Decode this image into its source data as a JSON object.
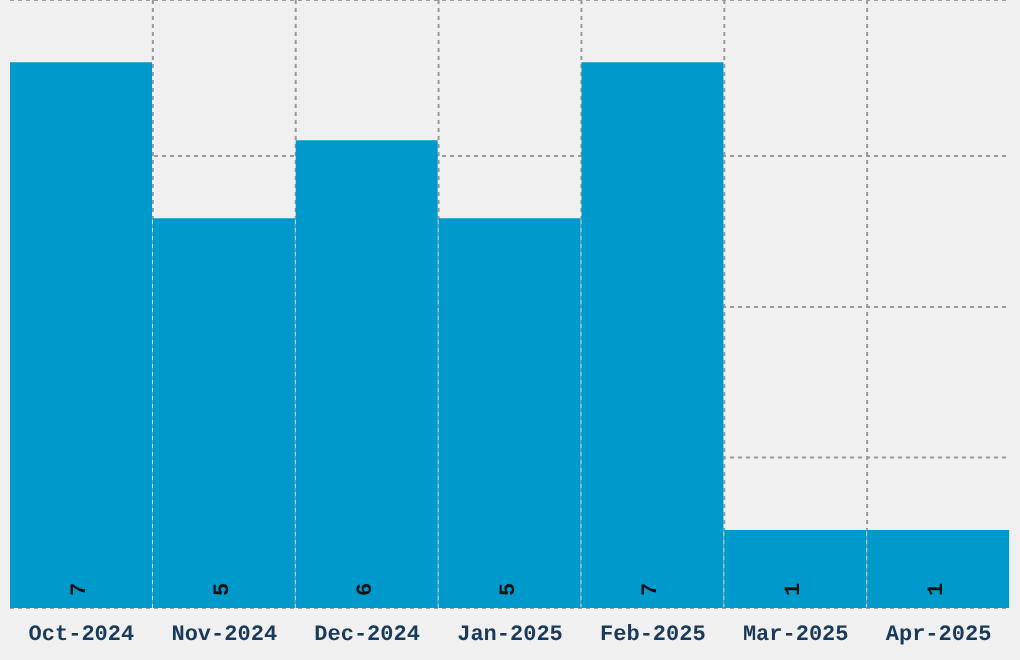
{
  "chart_data": {
    "type": "bar",
    "categories": [
      "Oct-2024",
      "Nov-2024",
      "Dec-2024",
      "Jan-2025",
      "Feb-2025",
      "Mar-2025",
      "Apr-2025"
    ],
    "values": [
      7,
      5,
      6,
      5,
      7,
      1,
      1
    ],
    "color": "#0099cc",
    "data_labels": true,
    "grid": true,
    "ylim": [
      0,
      7.8
    ],
    "yticks": [
      {
        "value": 1.93,
        "label": null
      },
      {
        "value": 3.86,
        "label": null
      },
      {
        "value": 5.8,
        "label": null
      }
    ],
    "tick_labels": "x"
  }
}
